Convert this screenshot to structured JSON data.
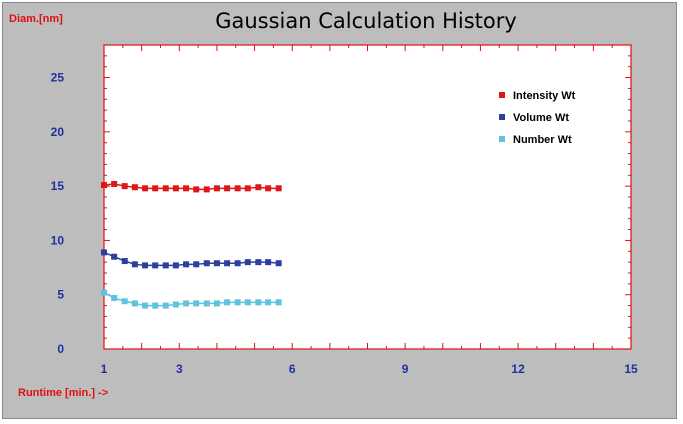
{
  "chart_data": {
    "type": "line",
    "title": "Gaussian Calculation History",
    "ylabel": "Diam.[nm]",
    "xlabel": "Runtime [min.] ->",
    "xlim": [
      1,
      15
    ],
    "ylim": [
      0,
      28
    ],
    "x_ticks": [
      1,
      3,
      6,
      9,
      12,
      15
    ],
    "y_ticks": [
      0,
      5,
      10,
      15,
      20,
      25
    ],
    "legend_position": "top-right",
    "grid": false,
    "x": [
      1.0,
      1.27,
      1.55,
      1.82,
      2.09,
      2.36,
      2.64,
      2.91,
      3.18,
      3.45,
      3.73,
      4.0,
      4.27,
      4.55,
      4.82,
      5.1,
      5.36,
      5.64
    ],
    "series": [
      {
        "name": "Intensity Wt",
        "color": "#e01515",
        "values": [
          15.1,
          15.2,
          15.0,
          14.9,
          14.8,
          14.8,
          14.8,
          14.8,
          14.8,
          14.7,
          14.7,
          14.8,
          14.8,
          14.8,
          14.8,
          14.9,
          14.8,
          14.8
        ]
      },
      {
        "name": "Volume Wt",
        "color": "#2a3fa0",
        "values": [
          8.9,
          8.5,
          8.1,
          7.8,
          7.7,
          7.7,
          7.7,
          7.7,
          7.8,
          7.8,
          7.9,
          7.9,
          7.9,
          7.9,
          8.0,
          8.0,
          8.0,
          7.9
        ]
      },
      {
        "name": "Number Wt",
        "color": "#5ec3dc",
        "values": [
          5.2,
          4.7,
          4.4,
          4.2,
          4.0,
          4.0,
          4.0,
          4.1,
          4.2,
          4.2,
          4.2,
          4.2,
          4.3,
          4.3,
          4.3,
          4.3,
          4.3,
          4.3
        ]
      }
    ]
  }
}
